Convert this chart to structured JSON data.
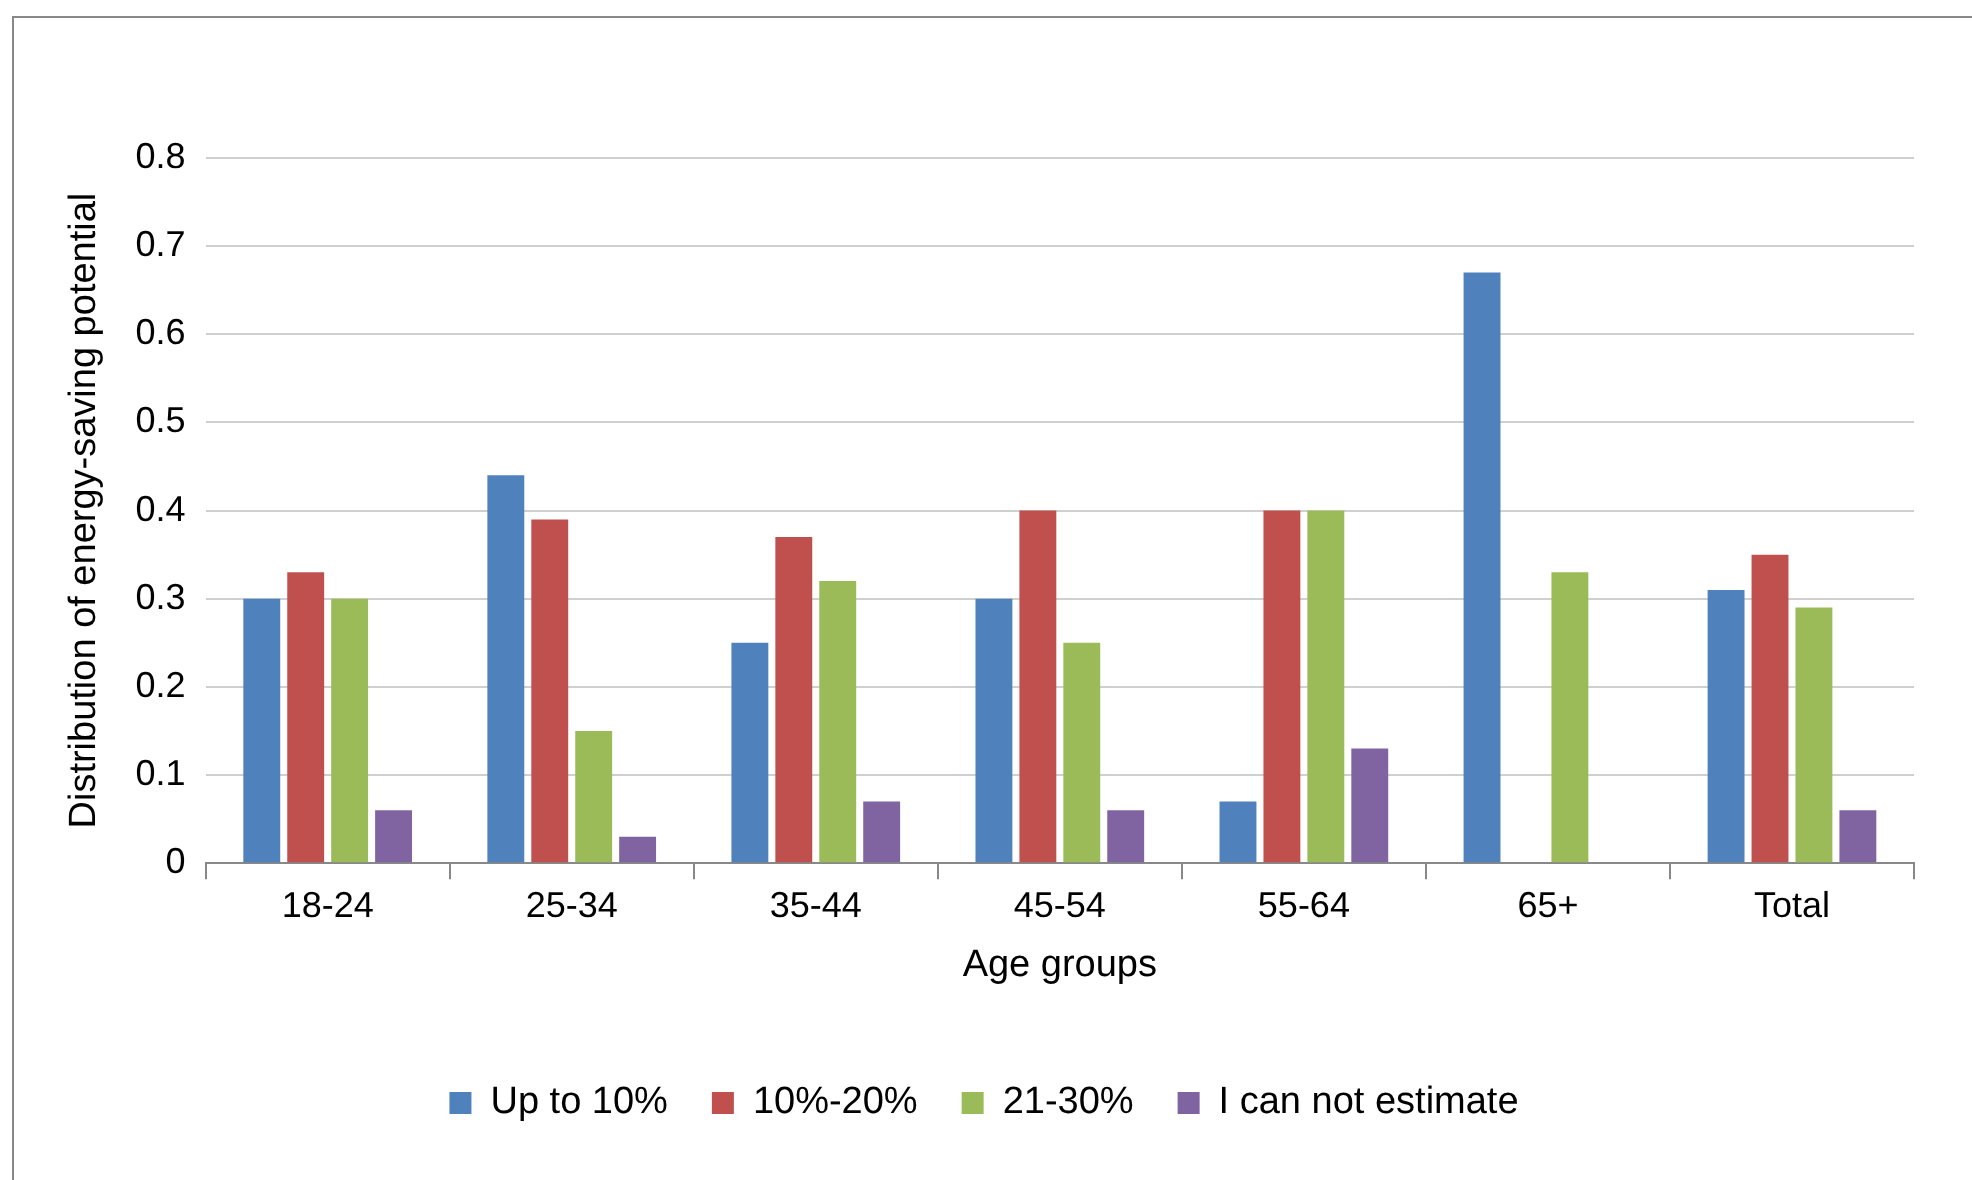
{
  "chart_data": {
    "type": "bar",
    "xlabel": "Age groups",
    "ylabel": "Distribution of energy-saving potential",
    "categories": [
      "18-24",
      "25-34",
      "35-44",
      "45-54",
      "55-64",
      "65+",
      "Total"
    ],
    "series": [
      {
        "name": "Up to 10%",
        "color": "#4f81bd",
        "values": [
          0.3,
          0.44,
          0.25,
          0.3,
          0.07,
          0.67,
          0.31
        ]
      },
      {
        "name": "10%-20%",
        "color": "#c0504d",
        "values": [
          0.33,
          0.39,
          0.37,
          0.4,
          0.4,
          0,
          0.35
        ]
      },
      {
        "name": "21-30%",
        "color": "#9bbb59",
        "values": [
          0.3,
          0.15,
          0.32,
          0.25,
          0.4,
          0.33,
          0.29
        ]
      },
      {
        "name": "I can not estimate",
        "color": "#8064a2",
        "values": [
          0.06,
          0.03,
          0.07,
          0.06,
          0.13,
          0,
          0.06
        ]
      }
    ],
    "ylim": [
      0,
      0.8
    ],
    "yticks": [
      0,
      0.1,
      0.2,
      0.3,
      0.4,
      0.5,
      0.6,
      0.7,
      0.8
    ],
    "grid": "y",
    "legend": "bottom"
  }
}
